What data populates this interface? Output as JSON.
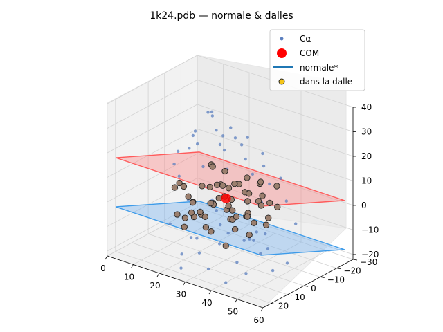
{
  "chart_data": {
    "type": "scatter",
    "projection": "3d",
    "title": "1k24.pdb — normale & dalles",
    "xlim": [
      0,
      60
    ],
    "ylim": [
      -30,
      25
    ],
    "zlim": [
      -22,
      40
    ],
    "x_ticks": [
      "0",
      "10",
      "20",
      "30",
      "40",
      "50",
      "60"
    ],
    "y_ticks": [
      "−30",
      "−20",
      "−10",
      "0",
      "10",
      "20"
    ],
    "z_ticks": [
      "−20",
      "−10",
      "0",
      "10",
      "20",
      "30",
      "40"
    ],
    "grid": true,
    "legend_position": "top-right",
    "legend": [
      {
        "label": "Cα",
        "marker": "small-dot",
        "color": "#5b7fbf"
      },
      {
        "label": "COM",
        "marker": "large-dot",
        "color": "#ff0000"
      },
      {
        "label": "normale*",
        "marker": "line",
        "color": "#1f77b4"
      },
      {
        "label": "dans la dalle",
        "marker": "dot-outlined",
        "color": "#f5c518"
      }
    ],
    "planes": [
      {
        "name": "upper-slab",
        "color": "#ff5a5a",
        "fill": "rgba(255,120,120,0.35)",
        "z_level": 10
      },
      {
        "name": "lower-slab",
        "color": "#3d9be9",
        "fill": "rgba(100,170,240,0.35)",
        "z_level": -10
      }
    ],
    "com": {
      "x": 30,
      "y": 0,
      "z": 3
    },
    "series": [
      {
        "name": "Cα",
        "points": [
          [
            22,
            -4,
            34
          ],
          [
            26,
            2,
            36
          ],
          [
            18,
            -8,
            31
          ],
          [
            30,
            6,
            33
          ],
          [
            34,
            10,
            30
          ],
          [
            20,
            3,
            28
          ],
          [
            28,
            -6,
            29
          ],
          [
            36,
            0,
            27
          ],
          [
            24,
            8,
            26
          ],
          [
            32,
            -10,
            25
          ],
          [
            40,
            4,
            24
          ],
          [
            16,
            -2,
            23
          ],
          [
            38,
            12,
            22
          ],
          [
            26,
            -12,
            22
          ],
          [
            44,
            6,
            20
          ],
          [
            30,
            14,
            21
          ],
          [
            20,
            -14,
            20
          ],
          [
            42,
            -4,
            19
          ],
          [
            14,
            4,
            18
          ],
          [
            34,
            -16,
            17
          ],
          [
            48,
            2,
            16
          ],
          [
            12,
            -6,
            15
          ],
          [
            46,
            -8,
            14
          ],
          [
            22,
            16,
            15
          ],
          [
            50,
            10,
            12
          ],
          [
            18,
            -18,
            12
          ],
          [
            36,
            18,
            11
          ],
          [
            10,
            0,
            10
          ],
          [
            52,
            -2,
            9
          ],
          [
            28,
            20,
            9
          ],
          [
            24,
            -6,
            -12
          ],
          [
            30,
            4,
            -14
          ],
          [
            20,
            2,
            -16
          ],
          [
            34,
            -8,
            -15
          ],
          [
            26,
            10,
            -17
          ],
          [
            38,
            6,
            -18
          ],
          [
            16,
            -10,
            -18
          ],
          [
            42,
            -2,
            -16
          ],
          [
            22,
            -14,
            -19
          ],
          [
            32,
            14,
            -20
          ],
          [
            44,
            10,
            -19
          ],
          [
            18,
            8,
            -21
          ],
          [
            36,
            -16,
            -21
          ],
          [
            28,
            -20,
            -22
          ],
          [
            48,
            0,
            -20
          ],
          [
            14,
            -4,
            -20
          ],
          [
            40,
            16,
            -22
          ],
          [
            24,
            18,
            -21
          ],
          [
            46,
            -12,
            -22
          ],
          [
            30,
            -24,
            -20
          ],
          [
            34,
            2,
            -8
          ],
          [
            20,
            -10,
            -9
          ],
          [
            42,
            8,
            -7
          ],
          [
            26,
            -18,
            -6
          ],
          [
            38,
            -6,
            -10
          ],
          [
            16,
            12,
            -8
          ],
          [
            48,
            -14,
            -6
          ]
        ]
      },
      {
        "name": "dans la dalle",
        "points": [
          [
            28,
            0,
            8
          ],
          [
            32,
            4,
            6
          ],
          [
            24,
            -4,
            5
          ],
          [
            36,
            -2,
            7
          ],
          [
            30,
            8,
            4
          ],
          [
            26,
            -8,
            3
          ],
          [
            34,
            6,
            2
          ],
          [
            22,
            2,
            6
          ],
          [
            38,
            10,
            1
          ],
          [
            20,
            -6,
            2
          ],
          [
            40,
            -4,
            4
          ],
          [
            28,
            12,
            0
          ],
          [
            32,
            -10,
            -1
          ],
          [
            18,
            4,
            1
          ],
          [
            42,
            2,
            -2
          ],
          [
            24,
            10,
            -3
          ],
          [
            36,
            -12,
            -2
          ],
          [
            30,
            -14,
            0
          ],
          [
            16,
            -2,
            -4
          ],
          [
            44,
            8,
            -4
          ],
          [
            26,
            14,
            5
          ],
          [
            34,
            14,
            7
          ],
          [
            20,
            10,
            8
          ],
          [
            38,
            -8,
            9
          ],
          [
            22,
            -12,
            7
          ],
          [
            40,
            12,
            6
          ],
          [
            14,
            6,
            4
          ],
          [
            46,
            -6,
            3
          ],
          [
            28,
            -16,
            5
          ],
          [
            32,
            16,
            2
          ],
          [
            18,
            -10,
            9
          ],
          [
            42,
            -12,
            8
          ],
          [
            24,
            16,
            -5
          ],
          [
            36,
            4,
            -6
          ],
          [
            30,
            -4,
            -7
          ],
          [
            26,
            6,
            -8
          ],
          [
            34,
            -6,
            -5
          ],
          [
            20,
            14,
            -2
          ],
          [
            38,
            -14,
            -1
          ],
          [
            44,
            0,
            9
          ],
          [
            16,
            -14,
            6
          ],
          [
            46,
            12,
            7
          ],
          [
            12,
            0,
            3
          ],
          [
            48,
            4,
            0
          ],
          [
            22,
            -16,
            -6
          ],
          [
            40,
            16,
            -7
          ],
          [
            28,
            18,
            3
          ],
          [
            32,
            -18,
            4
          ],
          [
            30,
            2,
            9
          ],
          [
            26,
            -2,
            1
          ],
          [
            34,
            0,
            -3
          ],
          [
            24,
            0,
            -1
          ],
          [
            36,
            8,
            5
          ],
          [
            30,
            -8,
            6
          ],
          [
            20,
            0,
            -6
          ],
          [
            40,
            -10,
            -5
          ],
          [
            28,
            6,
            -9
          ],
          [
            32,
            -2,
            9
          ],
          [
            18,
            6,
            -7
          ],
          [
            42,
            6,
            2
          ]
        ]
      }
    ]
  }
}
